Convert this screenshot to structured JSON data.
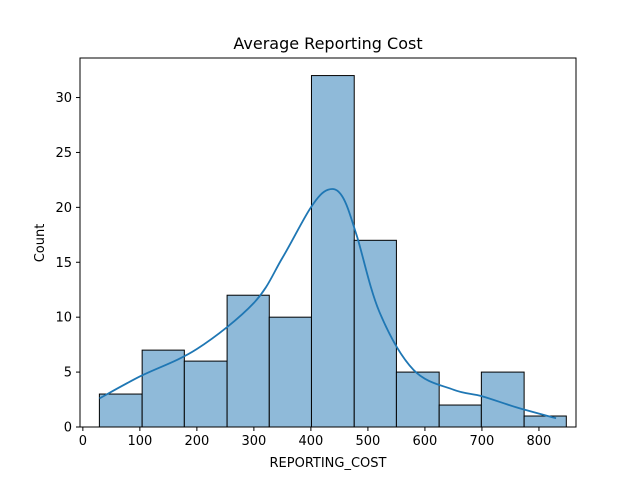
{
  "chart_data": {
    "type": "bar",
    "subtype": "histogram",
    "title": "Average Reporting Cost",
    "xlabel": "REPORTING_COST",
    "ylabel": "Count",
    "xlim": [
      -5,
      865
    ],
    "ylim": [
      0,
      33.6
    ],
    "xticks": [
      0,
      100,
      200,
      300,
      400,
      500,
      600,
      700,
      800
    ],
    "yticks": [
      0,
      5,
      10,
      15,
      20,
      25,
      30
    ],
    "bins": [
      {
        "x0": 29,
        "x1": 104,
        "count": 3
      },
      {
        "x0": 104,
        "x1": 178,
        "count": 7
      },
      {
        "x0": 178,
        "x1": 253,
        "count": 6
      },
      {
        "x0": 253,
        "x1": 327,
        "count": 12
      },
      {
        "x0": 327,
        "x1": 401,
        "count": 10
      },
      {
        "x0": 401,
        "x1": 476,
        "count": 32
      },
      {
        "x0": 476,
        "x1": 550,
        "count": 17
      },
      {
        "x0": 550,
        "x1": 625,
        "count": 5
      },
      {
        "x0": 625,
        "x1": 699,
        "count": 2
      },
      {
        "x0": 699,
        "x1": 774,
        "count": 5
      },
      {
        "x0": 774,
        "x1": 848,
        "count": 1
      }
    ],
    "kde": {
      "x": [
        29,
        100,
        200,
        300,
        350,
        400,
        430,
        455,
        480,
        520,
        580,
        650,
        700,
        760,
        830
      ],
      "y": [
        2.6,
        4.6,
        7.1,
        11.3,
        15.4,
        20.0,
        21.6,
        21.0,
        17.5,
        10.5,
        5.2,
        3.4,
        2.8,
        1.8,
        0.8
      ]
    },
    "colors": {
      "bar_fill": "#8fbad9",
      "bar_edge": "#000000",
      "kde_line": "#1f77b4"
    },
    "grid": false,
    "legend": "none"
  }
}
